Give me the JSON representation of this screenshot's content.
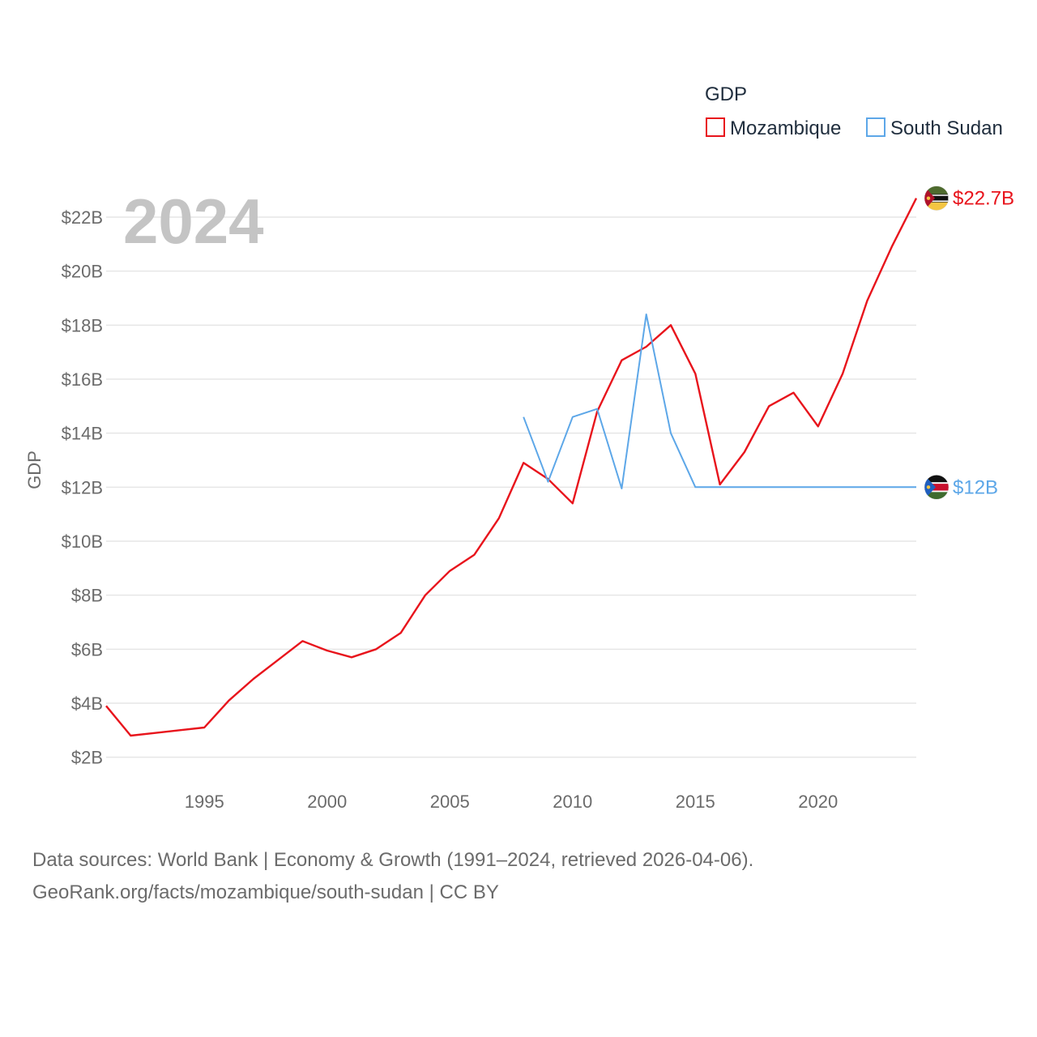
{
  "chart_data": {
    "type": "line",
    "title": "GDP",
    "year_label": "2024",
    "ylabel": "GDP",
    "xlabel": "",
    "xlim": [
      1991,
      2024
    ],
    "ylim": [
      1.0,
      23.8
    ],
    "x_ticks": [
      1995,
      2000,
      2005,
      2010,
      2015,
      2020
    ],
    "y_ticks": [
      {
        "value": 2,
        "label": "$2B"
      },
      {
        "value": 4,
        "label": "$4B"
      },
      {
        "value": 6,
        "label": "$6B"
      },
      {
        "value": 8,
        "label": "$8B"
      },
      {
        "value": 10,
        "label": "$10B"
      },
      {
        "value": 12,
        "label": "$12B"
      },
      {
        "value": 14,
        "label": "$14B"
      },
      {
        "value": 16,
        "label": "$16B"
      },
      {
        "value": 18,
        "label": "$18B"
      },
      {
        "value": 20,
        "label": "$20B"
      },
      {
        "value": 22,
        "label": "$22B"
      }
    ],
    "legend_position": "top-right",
    "series": [
      {
        "name": "Mozambique",
        "color": "#e8141c",
        "end_label": "$22.7B",
        "flag": "mozambique-flag",
        "x": [
          1991,
          1992,
          1993,
          1994,
          1995,
          1996,
          1997,
          1998,
          1999,
          2000,
          2001,
          2002,
          2003,
          2004,
          2005,
          2006,
          2007,
          2008,
          2009,
          2010,
          2011,
          2012,
          2013,
          2014,
          2015,
          2016,
          2017,
          2018,
          2019,
          2020,
          2021,
          2022,
          2023,
          2024
        ],
        "values": [
          3.9,
          2.8,
          2.9,
          3.0,
          3.1,
          4.1,
          4.9,
          5.6,
          6.3,
          5.95,
          5.7,
          6.0,
          6.6,
          8.0,
          8.9,
          9.5,
          10.85,
          12.9,
          12.3,
          11.4,
          14.8,
          16.7,
          17.2,
          18.0,
          16.2,
          12.1,
          13.3,
          15.0,
          15.5,
          14.25,
          16.2,
          18.9,
          20.9,
          22.7
        ]
      },
      {
        "name": "South Sudan",
        "color": "#5da7e8",
        "end_label": "$12B",
        "flag": "south-sudan-flag",
        "x": [
          2008,
          2009,
          2010,
          2011,
          2012,
          2013,
          2014,
          2015,
          2016,
          2017,
          2018,
          2019,
          2020,
          2021,
          2022,
          2023,
          2024
        ],
        "values": [
          14.6,
          12.2,
          14.6,
          14.9,
          11.95,
          18.4,
          14.0,
          12.0,
          12.0,
          12.0,
          12.0,
          12.0,
          12.0,
          12.0,
          12.0,
          12.0,
          12.0
        ]
      }
    ]
  },
  "footer": {
    "line1": "Data sources: World Bank | Economy & Growth (1991–2024, retrieved 2026-04-06).",
    "line2": "GeoRank.org/facts/mozambique/south-sudan | CC BY"
  }
}
